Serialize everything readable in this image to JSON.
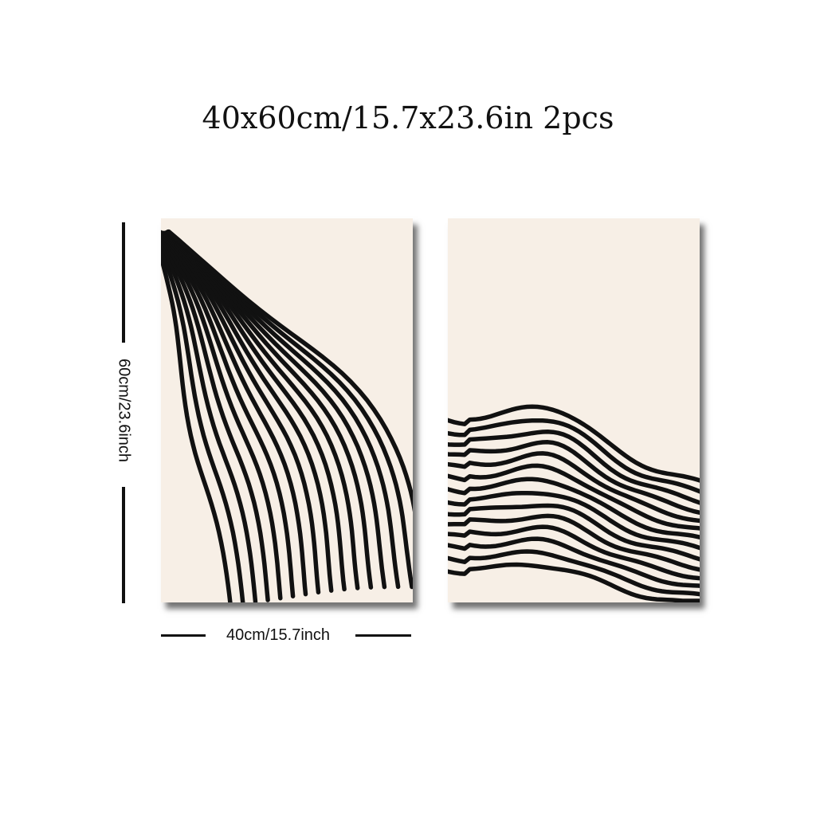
{
  "header": {
    "title": "40x60cm/15.7x23.6in 2pcs"
  },
  "dimensions": {
    "height_label": "60cm/23.6inch",
    "width_label": "40cm/15.7inch"
  },
  "artwork": {
    "background_color": "#f7efe6",
    "line_color": "#111111",
    "left_panel": {
      "stripes": 16
    },
    "right_panel": {
      "stripes": 14
    }
  }
}
